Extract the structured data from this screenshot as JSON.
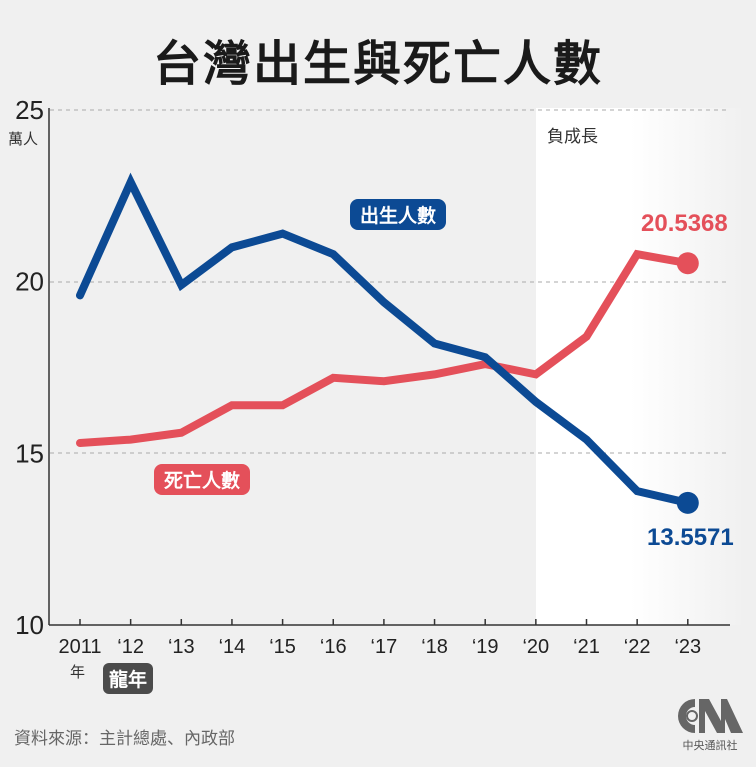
{
  "title": "台灣出生與死亡人數",
  "y_axis": {
    "unit": "萬人",
    "ticks": [
      "25",
      "20",
      "15",
      "10"
    ]
  },
  "x_axis": {
    "ticks": [
      "2011",
      "'12",
      "'13",
      "'14",
      "'15",
      "'16",
      "'17",
      "'18",
      "'19",
      "'20",
      "'21",
      "'22",
      "'23"
    ],
    "first_suffix": "年",
    "dragon_year_label": "龍年"
  },
  "shaded_region_label": "負成長",
  "series_labels": {
    "births": "出生人數",
    "deaths": "死亡人數"
  },
  "end_values": {
    "births": "13.5571",
    "deaths": "20.5368"
  },
  "colors": {
    "births": "#0c4a94",
    "deaths": "#e4505a",
    "background": "#f0f0f0",
    "shaded": "#ffffff",
    "dragon_badge": "#4b4b4b"
  },
  "footer": {
    "source": "資料來源：主計總處、內政部",
    "logo_text": "CNA",
    "logo_sub": "中央通訊社"
  },
  "chart_data": {
    "type": "line",
    "title": "台灣出生與死亡人數",
    "xlabel": "年",
    "ylabel": "萬人",
    "ylim": [
      10,
      25
    ],
    "grid": "horizontal dashed at 15, 20, 25",
    "categories": [
      "2011",
      "2012",
      "2013",
      "2014",
      "2015",
      "2016",
      "2017",
      "2018",
      "2019",
      "2020",
      "2021",
      "2022",
      "2023"
    ],
    "series": [
      {
        "name": "出生人數",
        "values": [
          19.6,
          22.9,
          19.9,
          21.0,
          21.4,
          20.8,
          19.4,
          18.2,
          17.8,
          16.5,
          15.4,
          13.9,
          13.5571
        ]
      },
      {
        "name": "死亡人數",
        "values": [
          15.3,
          15.4,
          15.6,
          16.4,
          16.4,
          17.2,
          17.1,
          17.3,
          17.6,
          17.3,
          18.4,
          20.8,
          20.5368
        ]
      }
    ],
    "annotations": [
      {
        "text": "負成長",
        "x_range": [
          "2020",
          "2023"
        ]
      },
      {
        "text": "龍年",
        "x": "2012"
      },
      {
        "text": "20.5368",
        "x": "2023",
        "series": "死亡人數"
      },
      {
        "text": "13.5571",
        "x": "2023",
        "series": "出生人數"
      }
    ]
  }
}
